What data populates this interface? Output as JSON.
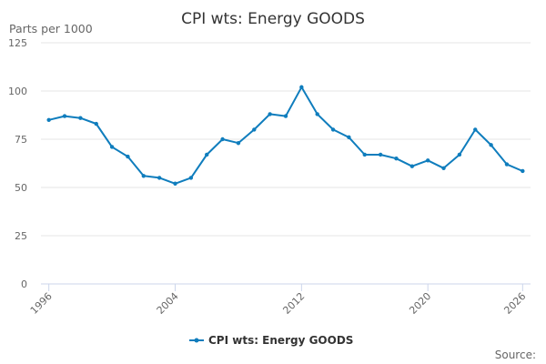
{
  "chart_data": {
    "type": "line",
    "title": "CPI wts: Energy GOODS",
    "ylabel": "Parts per 1000",
    "xlabel": "",
    "ylim": [
      0,
      125
    ],
    "xlim": [
      1996,
      2026
    ],
    "yticks": [
      "0",
      "25",
      "50",
      "75",
      "100",
      "125"
    ],
    "xticks": [
      "1996",
      "2004",
      "2012",
      "2020",
      "2026"
    ],
    "grid": true,
    "legend_position": "bottom-center",
    "series": [
      {
        "name": "CPI wts: Energy GOODS",
        "color": "#0f7dbd",
        "x": [
          1996,
          1997,
          1998,
          1999,
          2000,
          2001,
          2002,
          2003,
          2004,
          2005,
          2006,
          2007,
          2008,
          2009,
          2010,
          2011,
          2012,
          2013,
          2014,
          2015,
          2016,
          2017,
          2018,
          2019,
          2020,
          2021,
          2022,
          2023,
          2024,
          2025,
          2026
        ],
        "values": [
          85,
          87,
          86,
          83,
          71,
          66,
          56,
          55,
          52,
          55,
          67,
          75,
          73,
          80,
          88,
          87,
          102,
          88,
          80,
          76,
          67,
          67,
          65,
          61,
          64,
          60,
          67,
          80,
          72,
          62,
          58.5
        ]
      }
    ],
    "source_label": "Source:"
  }
}
